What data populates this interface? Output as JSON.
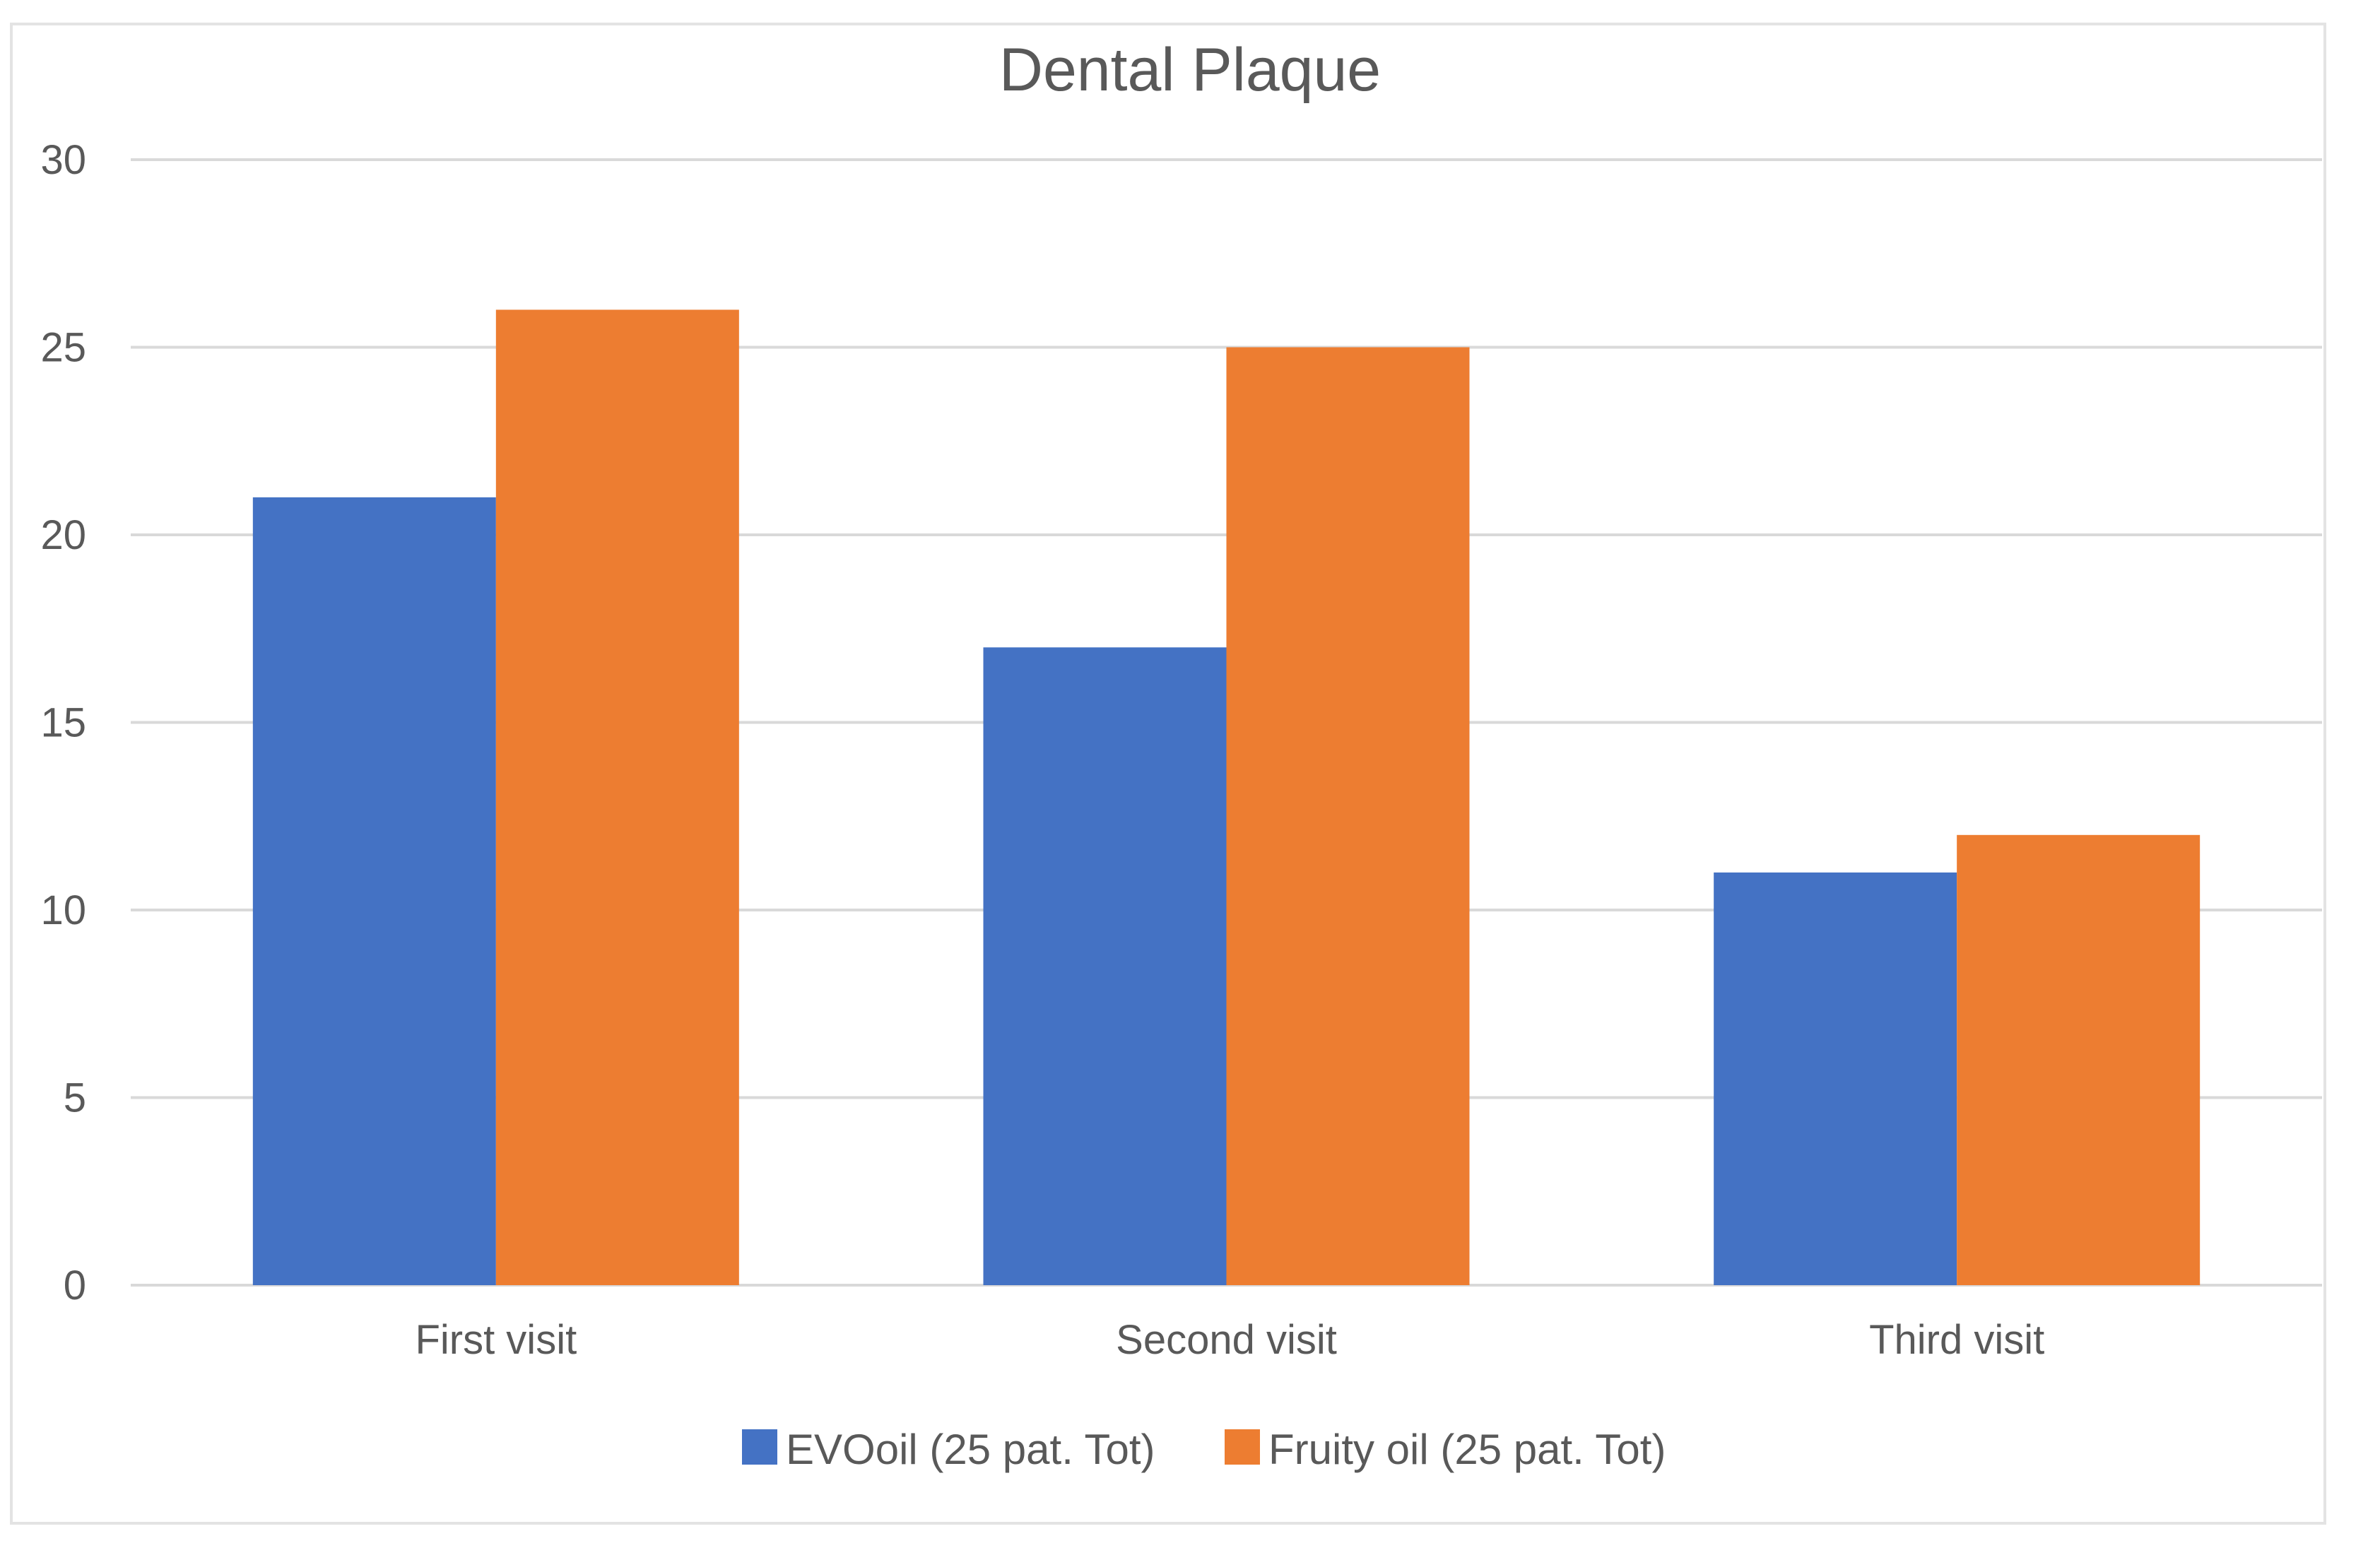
{
  "chart_data": {
    "type": "bar",
    "title": "Dental Plaque",
    "categories": [
      "First visit",
      "Second visit",
      "Third visit"
    ],
    "series": [
      {
        "name": "EVOoil (25 pat. Tot)",
        "values": [
          21,
          17,
          11
        ],
        "color": "#4472c4"
      },
      {
        "name": "Fruity oil (25 pat. Tot)",
        "values": [
          26,
          25,
          12
        ],
        "color": "#ed7d31"
      }
    ],
    "ylim": [
      0,
      30
    ],
    "yticks": [
      0,
      5,
      10,
      15,
      20,
      25,
      30
    ],
    "grid": true,
    "legend_position": "bottom"
  }
}
